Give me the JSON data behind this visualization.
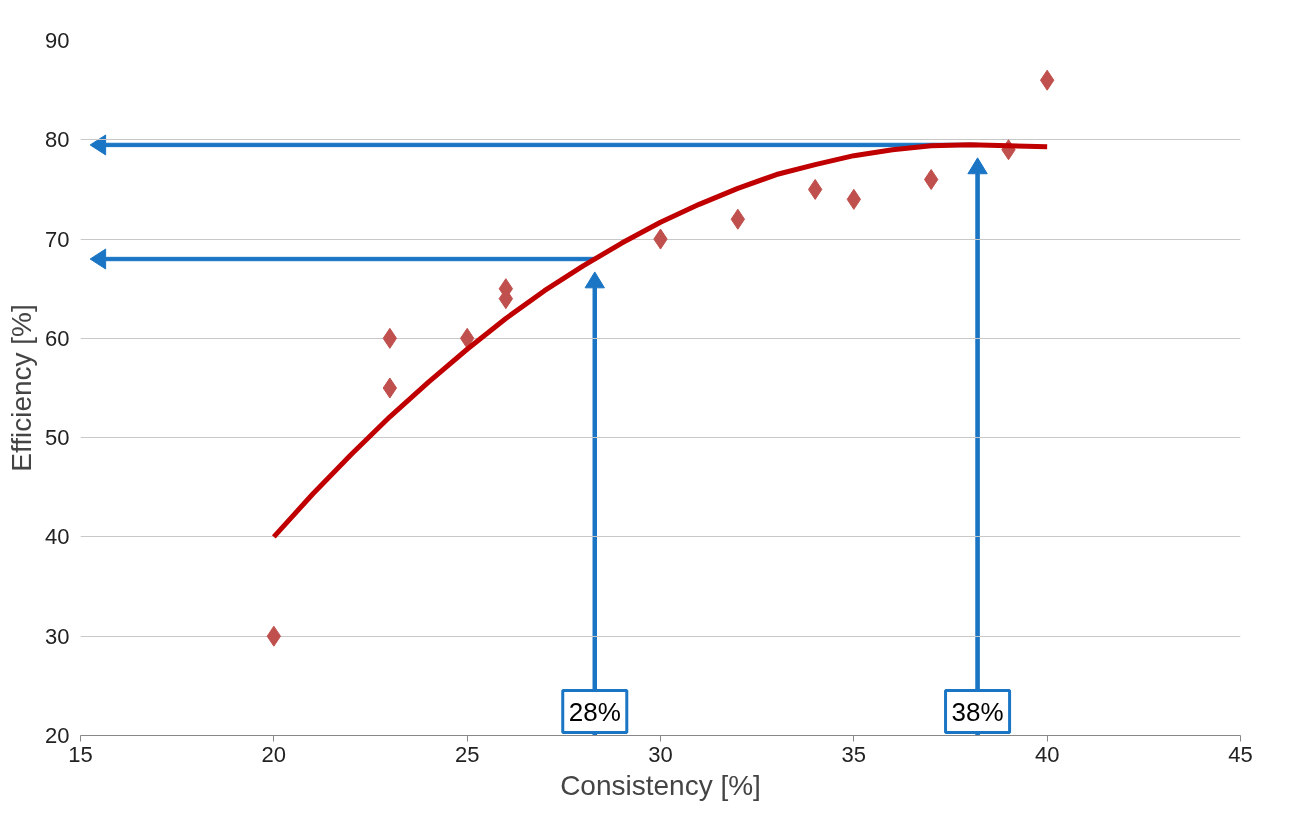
{
  "chart_data": {
    "type": "scatter",
    "xlabel": "Consistency [%]",
    "ylabel": "Efficiency [%]",
    "xlim": [
      15,
      45
    ],
    "ylim": [
      20,
      90
    ],
    "xticks": [
      15,
      20,
      25,
      30,
      35,
      40,
      45
    ],
    "yticks": [
      20,
      30,
      40,
      50,
      60,
      70,
      80,
      90
    ],
    "grid": "y",
    "marker": "diamond",
    "series": [
      {
        "type": "scatter",
        "color": "#c0504d",
        "x": [
          20,
          23,
          23,
          25,
          26,
          26,
          30,
          32,
          34,
          35,
          37,
          39,
          40
        ],
        "values": [
          30,
          60,
          55,
          60,
          65,
          64,
          70,
          72,
          75,
          74,
          76,
          79,
          86
        ]
      },
      {
        "type": "line",
        "color": "#c00000",
        "marker": "none",
        "x": [
          20,
          21,
          22,
          23,
          24,
          25,
          26,
          27,
          28,
          29,
          30,
          31,
          32,
          33,
          34,
          35,
          36,
          37,
          38,
          39,
          40
        ],
        "values": [
          40.0,
          44.3,
          48.3,
          52.1,
          55.6,
          58.9,
          62.0,
          64.8,
          67.3,
          69.6,
          71.7,
          73.5,
          75.1,
          76.5,
          77.5,
          78.4,
          79.0,
          79.4,
          79.5,
          79.4,
          79.3
        ]
      }
    ],
    "ref_lines": [
      {
        "axis": "x",
        "value": 28.3,
        "label": "28%",
        "color": "#1a75c4"
      },
      {
        "axis": "x",
        "value": 38.2,
        "label": "38%",
        "color": "#1a75c4"
      }
    ]
  }
}
